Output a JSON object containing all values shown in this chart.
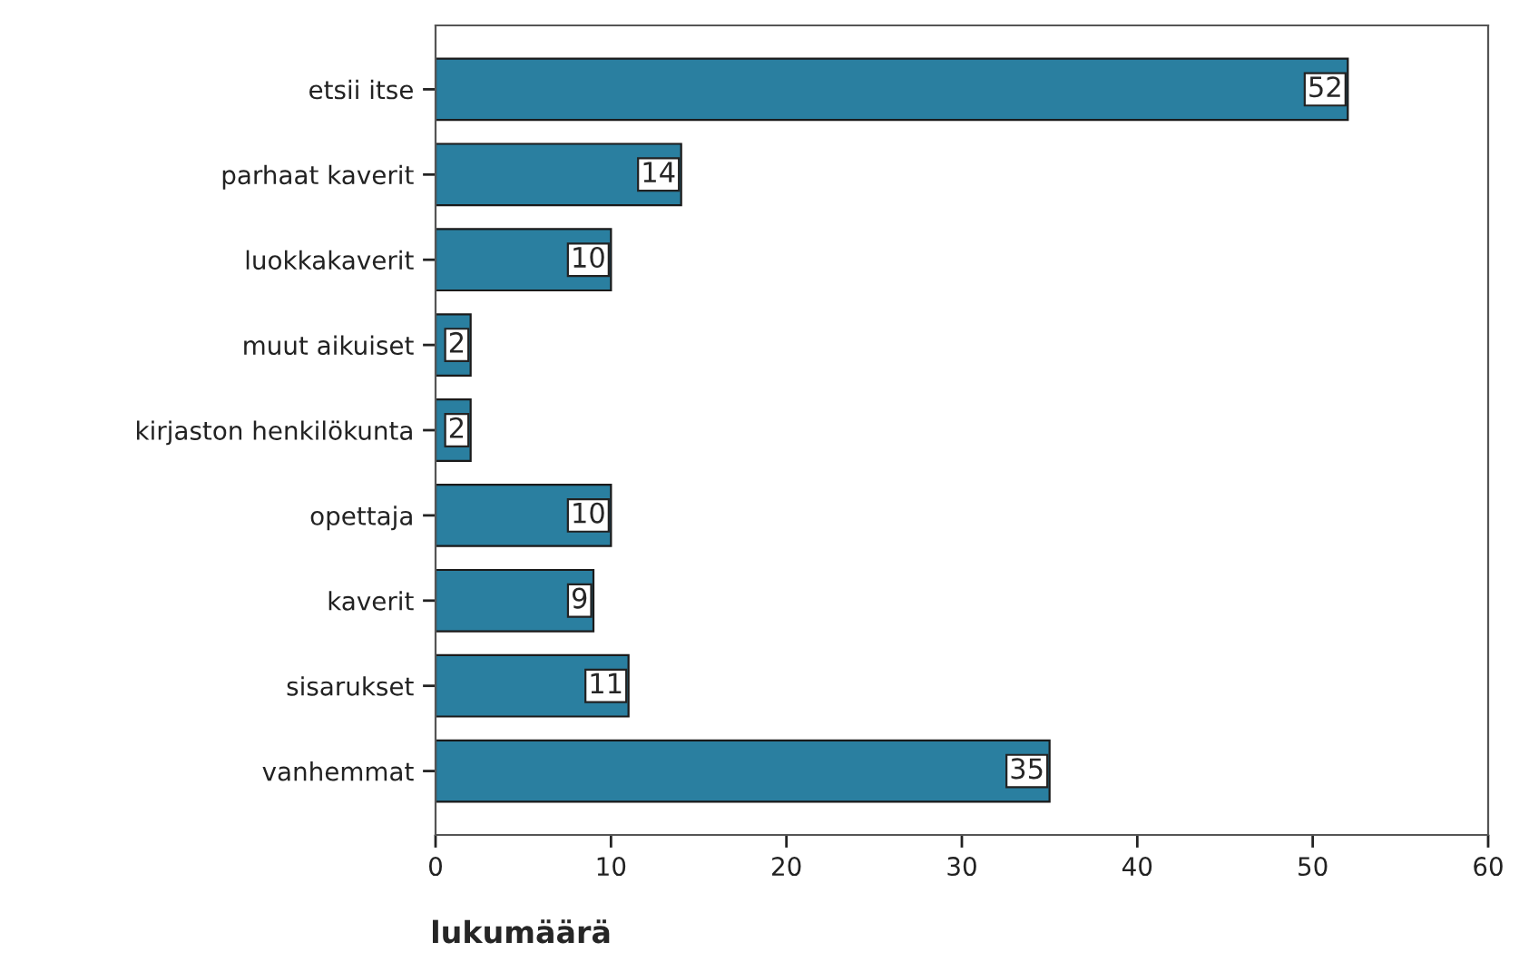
{
  "chart_data": {
    "type": "bar",
    "orientation": "horizontal",
    "xlabel": "lukumäärä",
    "categories": [
      "etsii itse",
      "parhaat kaverit",
      "luokkakaverit",
      "muut aikuiset",
      "kirjaston henkilökunta",
      "opettaja",
      "kaverit",
      "sisarukset",
      "vanhemmat"
    ],
    "values": [
      52,
      14,
      10,
      2,
      2,
      10,
      9,
      11,
      35
    ],
    "color": "#2a7fa0",
    "xlim": [
      0,
      60
    ],
    "xticks": [
      0,
      10,
      20,
      30,
      40,
      50,
      60
    ],
    "data_labels": true,
    "grid": false,
    "legend": false
  }
}
